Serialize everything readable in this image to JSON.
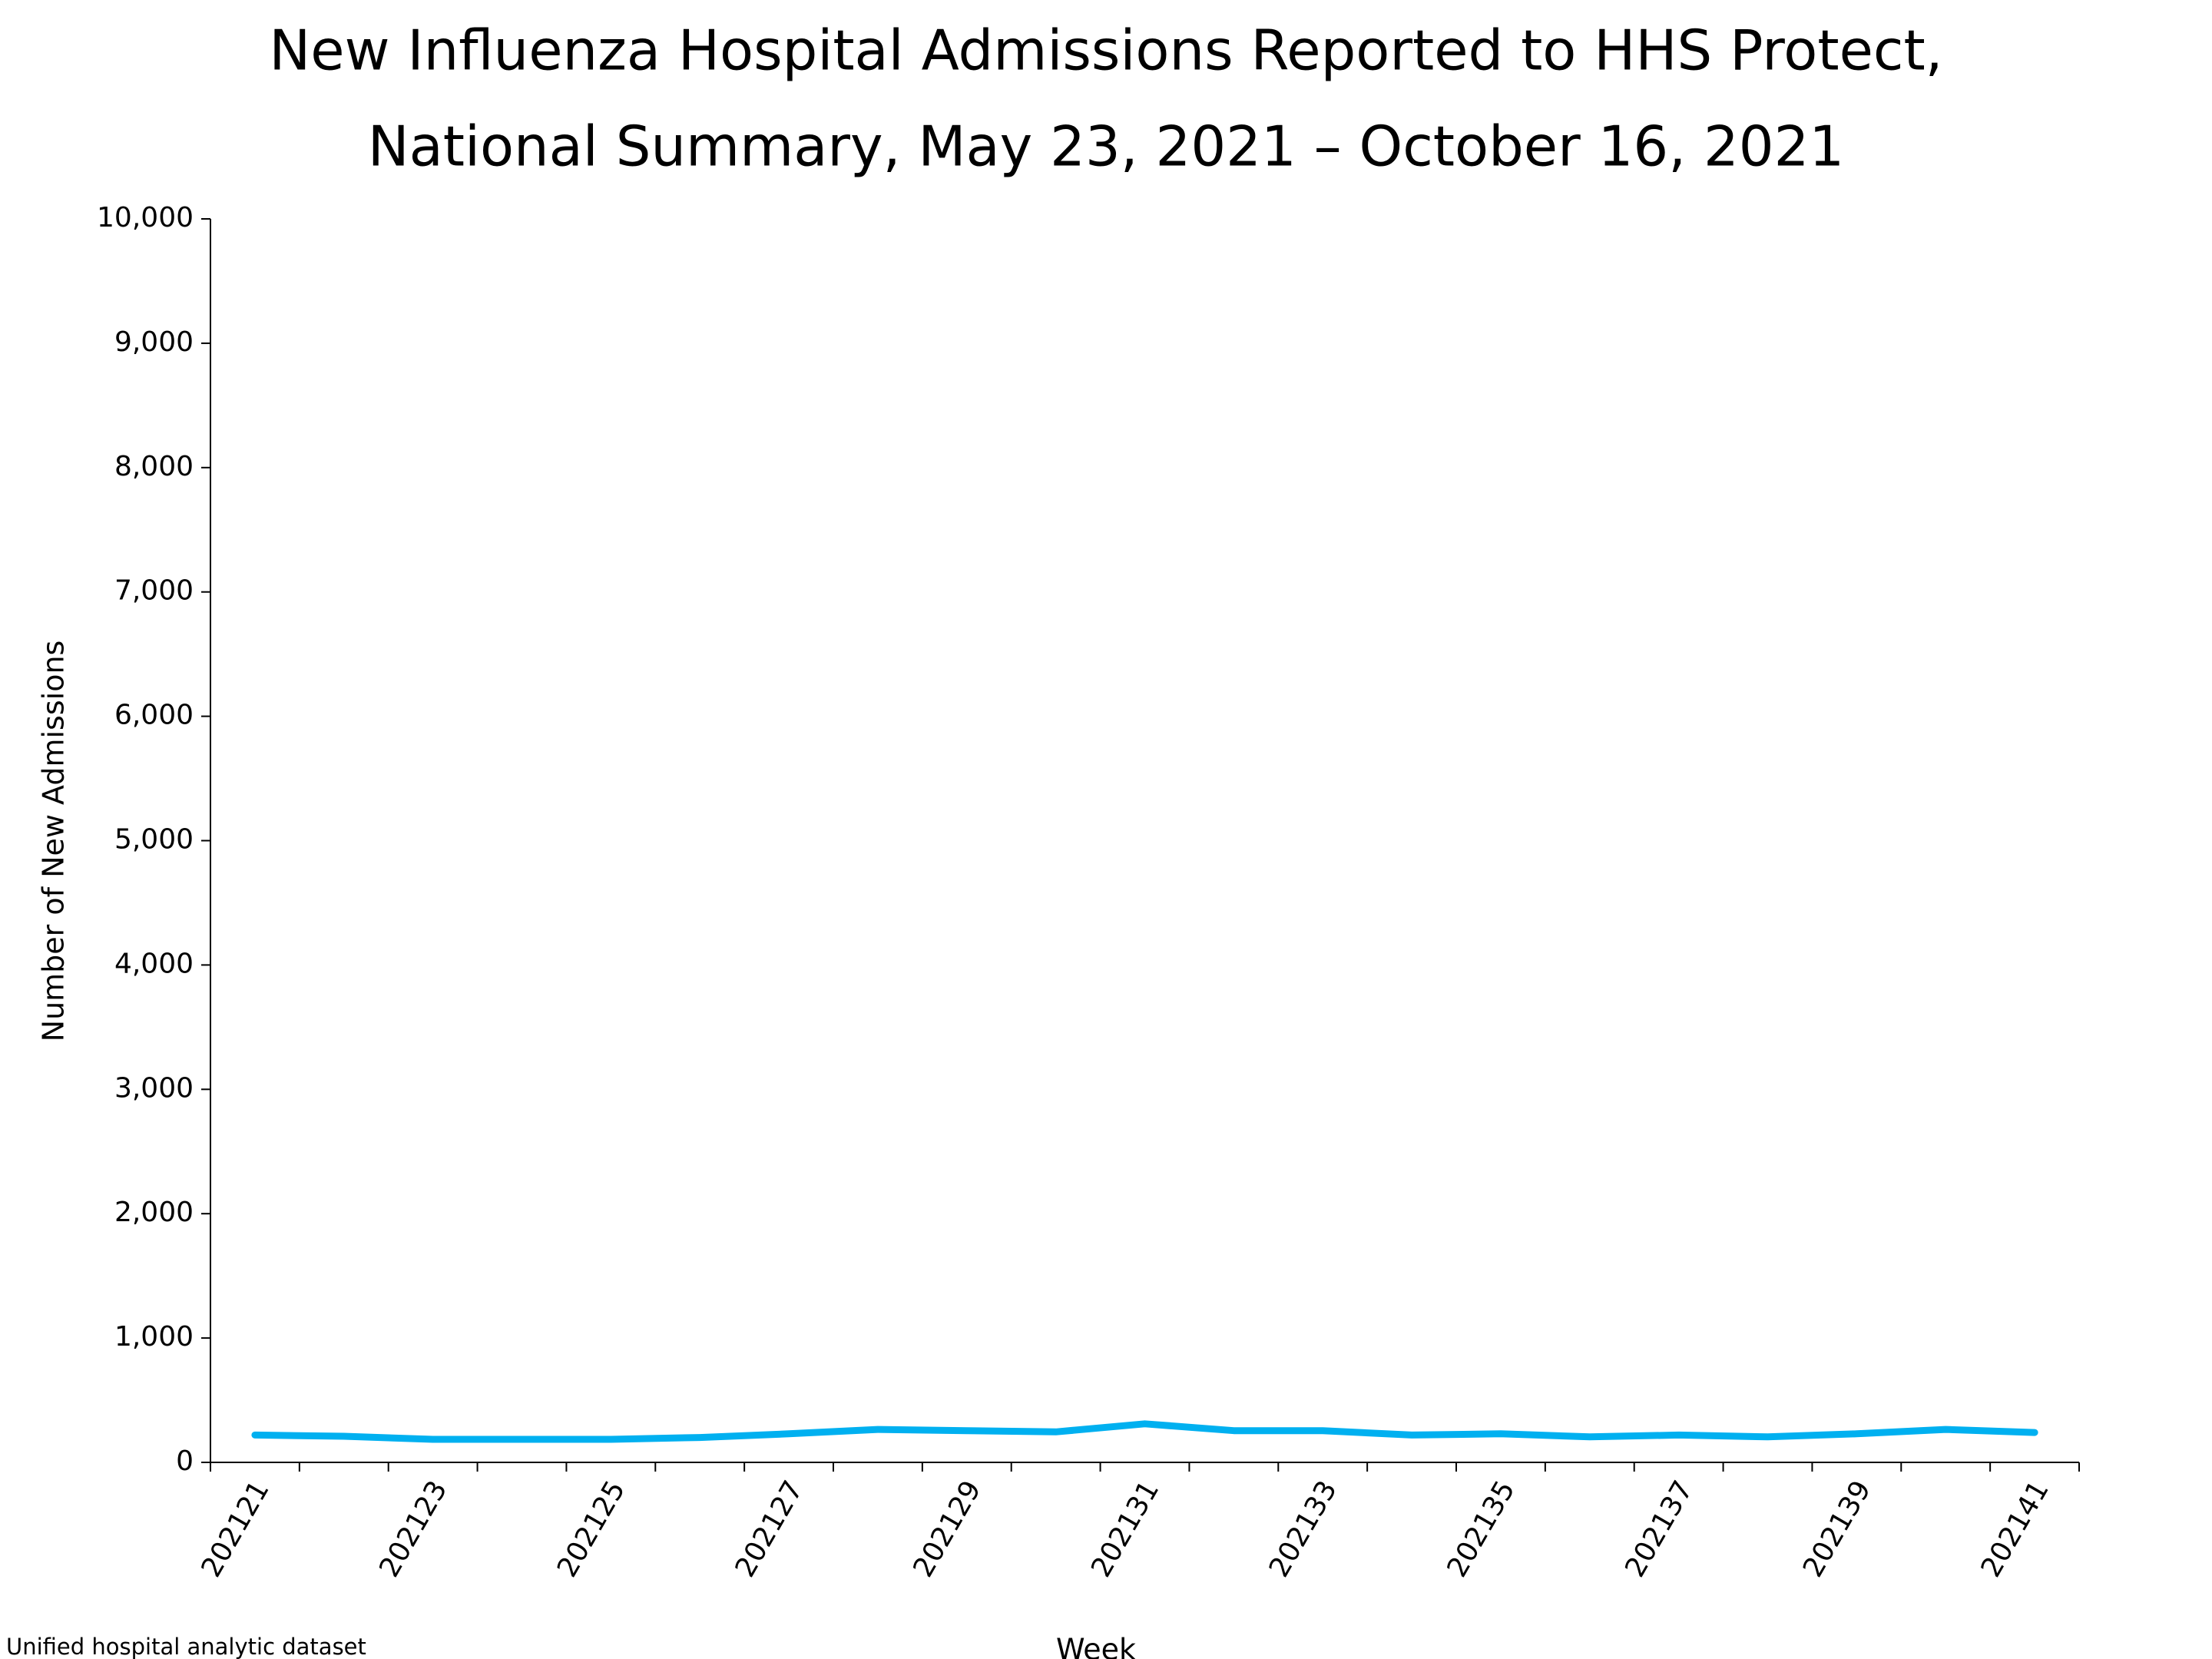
{
  "chart_data": {
    "type": "line",
    "title": [
      "New Influenza Hospital Admissions Reported to HHS Protect,",
      "National Summary, May 23, 2021 – October 16, 2021"
    ],
    "y_label": "Number of New Admissions",
    "x_label": "Week",
    "source": "Unified hospital analytic dataset",
    "categories": [
      "202121",
      null,
      "202123",
      null,
      "202125",
      null,
      "202127",
      null,
      "202129",
      null,
      "202131",
      null,
      "202133",
      null,
      "202135",
      null,
      "202137",
      null,
      "202139",
      null,
      "202141"
    ],
    "series": [
      {
        "name": "New Admissions",
        "color": "#00b0f0",
        "values": [
          220,
          210,
          185,
          185,
          185,
          200,
          230,
          265,
          255,
          245,
          310,
          255,
          255,
          220,
          230,
          205,
          220,
          205,
          230,
          265,
          240
        ]
      }
    ],
    "ylim": [
      0,
      10000
    ],
    "yticks": [
      0,
      {
        "value": 1000,
        "label": "1,000"
      },
      {
        "value": 2000,
        "label": "2,000"
      },
      {
        "value": 3000,
        "label": "3,000"
      },
      {
        "value": 4000,
        "label": "4,000"
      },
      {
        "value": 5000,
        "label": "5,000"
      },
      {
        "value": 6000,
        "label": "6,000"
      },
      {
        "value": 7000,
        "label": "7,000"
      },
      {
        "value": 8000,
        "label": "8,000"
      },
      {
        "value": 9000,
        "label": "9,000"
      },
      {
        "value": 10000,
        "label": "10,000"
      }
    ],
    "grid": false
  }
}
